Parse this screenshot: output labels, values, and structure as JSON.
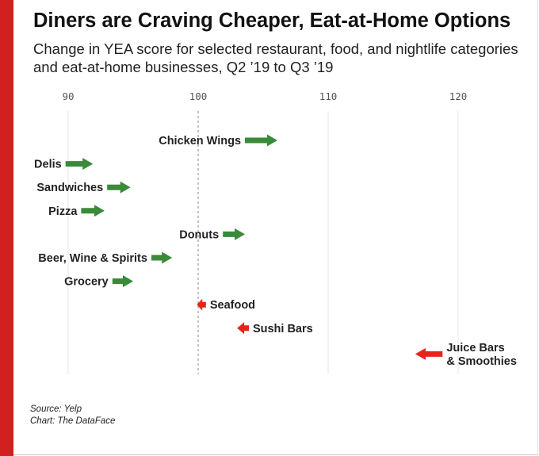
{
  "title": "Diners are Craving Cheaper, Eat-at-Home Options",
  "subtitle": "Change in YEA score for selected restaurant, food, and nightlife categories and eat-at-home businesses, Q2 ’19 to Q3 ’19",
  "source": "Source: Yelp",
  "credit": "Chart: The DataFace",
  "colors": {
    "accent": "#d12020",
    "increase": "#3a8a3a",
    "decrease": "#e8231c",
    "reference": "#888888",
    "grid": "#e6e6e6"
  },
  "chart_data": {
    "type": "arrow",
    "x_ticks": [
      90,
      100,
      110,
      120
    ],
    "xlim": [
      90,
      120
    ],
    "reference_line": 100,
    "grid": true,
    "xlabel": "",
    "ylabel": "",
    "categories": [
      {
        "label": [
          "Chicken Wings"
        ],
        "from": 103.6,
        "to": 106.1,
        "direction": "increase"
      },
      {
        "label": [
          "Delis"
        ],
        "from": 89.8,
        "to": 91.9,
        "direction": "increase"
      },
      {
        "label": [
          "Sandwiches"
        ],
        "from": 93.0,
        "to": 94.8,
        "direction": "increase"
      },
      {
        "label": [
          "Pizza"
        ],
        "from": 91.0,
        "to": 92.8,
        "direction": "increase"
      },
      {
        "label": [
          "Donuts"
        ],
        "from": 101.9,
        "to": 103.6,
        "direction": "increase"
      },
      {
        "label": [
          "Beer, Wine & Spirits"
        ],
        "from": 96.4,
        "to": 98.0,
        "direction": "increase"
      },
      {
        "label": [
          "Grocery"
        ],
        "from": 93.4,
        "to": 95.0,
        "direction": "increase"
      },
      {
        "label": [
          "Seafood"
        ],
        "from": 100.6,
        "to": 99.9,
        "direction": "decrease"
      },
      {
        "label": [
          "Sushi Bars"
        ],
        "from": 103.9,
        "to": 103.0,
        "direction": "decrease"
      },
      {
        "label": [
          "Juice Bars",
          "& Smoothies"
        ],
        "from": 118.8,
        "to": 116.7,
        "direction": "decrease"
      }
    ]
  }
}
